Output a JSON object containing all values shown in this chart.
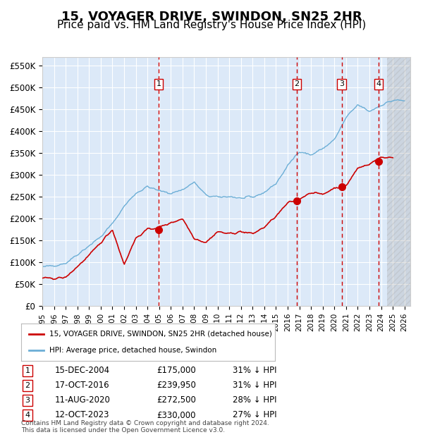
{
  "title": "15, VOYAGER DRIVE, SWINDON, SN25 2HR",
  "subtitle": "Price paid vs. HM Land Registry's House Price Index (HPI)",
  "title_fontsize": 13,
  "subtitle_fontsize": 11,
  "background_color": "#dce9f8",
  "plot_bg_color": "#dce9f8",
  "hpi_color": "#6baed6",
  "price_color": "#cc0000",
  "sale_marker_color": "#cc0000",
  "dashed_line_color": "#cc0000",
  "legend_label_red": "15, VOYAGER DRIVE, SWINDON, SN25 2HR (detached house)",
  "legend_label_blue": "HPI: Average price, detached house, Swindon",
  "footer": "Contains HM Land Registry data © Crown copyright and database right 2024.\nThis data is licensed under the Open Government Licence v3.0.",
  "sale_points": [
    {
      "num": 1,
      "date": "15-DEC-2004",
      "price": 175000,
      "year": 2004.96
    },
    {
      "num": 2,
      "date": "17-OCT-2016",
      "price": 239950,
      "year": 2016.79
    },
    {
      "num": 3,
      "date": "11-AUG-2020",
      "price": 272500,
      "year": 2020.62
    },
    {
      "num": 4,
      "date": "12-OCT-2023",
      "price": 330000,
      "year": 2023.78
    }
  ],
  "table_rows": [
    {
      "num": 1,
      "date": "15-DEC-2004",
      "price": "£175,000",
      "pct": "31% ↓ HPI"
    },
    {
      "num": 2,
      "date": "17-OCT-2016",
      "price": "£239,950",
      "pct": "31% ↓ HPI"
    },
    {
      "num": 3,
      "date": "11-AUG-2020",
      "price": "£272,500",
      "pct": "28% ↓ HPI"
    },
    {
      "num": 4,
      "date": "12-OCT-2023",
      "price": "£330,000",
      "pct": "27% ↓ HPI"
    }
  ],
  "xmin": 1995.0,
  "xmax": 2026.5,
  "ymin": 0,
  "ymax": 570000,
  "yticks": [
    0,
    50000,
    100000,
    150000,
    200000,
    250000,
    300000,
    350000,
    400000,
    450000,
    500000,
    550000
  ],
  "ytick_labels": [
    "£0",
    "£50K",
    "£100K",
    "£150K",
    "£200K",
    "£250K",
    "£300K",
    "£350K",
    "£400K",
    "£450K",
    "£500K",
    "£550K"
  ]
}
